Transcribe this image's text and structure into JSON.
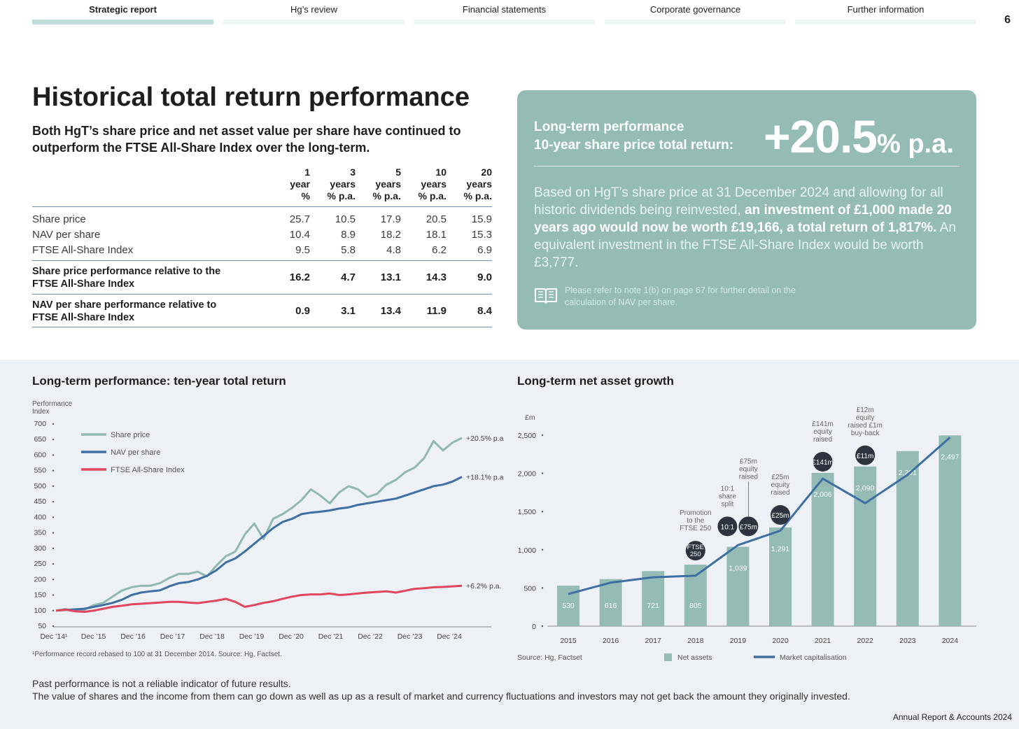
{
  "nav": {
    "tabs": [
      {
        "label": "Strategic report",
        "active": true
      },
      {
        "label": "Hg’s review",
        "active": false
      },
      {
        "label": "Financial statements",
        "active": false
      },
      {
        "label": "Corporate governance",
        "active": false
      },
      {
        "label": "Further information",
        "active": false
      }
    ],
    "page_number": "6"
  },
  "title": "Historical total return performance",
  "intro": "Both HgT’s share price and net asset value per share have continued to outperform the FTSE All-Share Index over the long-term.",
  "table": {
    "headers": [
      [
        "1",
        "year",
        "%"
      ],
      [
        "3",
        "years",
        "% p.a."
      ],
      [
        "5",
        "years",
        "% p.a."
      ],
      [
        "10",
        "years",
        "% p.a."
      ],
      [
        "20",
        "years",
        "% p.a."
      ]
    ],
    "rows": [
      {
        "label": "Share price",
        "values": [
          "25.7",
          "10.5",
          "17.9",
          "20.5",
          "15.9"
        ]
      },
      {
        "label": "NAV per share",
        "values": [
          "10.4",
          "8.9",
          "18.2",
          "18.1",
          "15.3"
        ]
      },
      {
        "label": "FTSE All-Share Index",
        "values": [
          "9.5",
          "5.8",
          "4.8",
          "6.2",
          "6.9"
        ]
      }
    ],
    "bold_rows": [
      {
        "label": "Share price performance relative to the FTSE All-Share Index",
        "values": [
          "16.2",
          "4.7",
          "13.1",
          "14.3",
          "9.0"
        ]
      },
      {
        "label": "NAV per share performance relative to FTSE All-Share Index",
        "values": [
          "0.9",
          "3.1",
          "13.4",
          "11.9",
          "8.4"
        ]
      }
    ]
  },
  "callout": {
    "heading_line1": "Long-term performance",
    "heading_line2": "10-year share price total return:",
    "big_number": "+20.5",
    "big_suffix": "% p.a.",
    "body_pre": "Based on HgT’s share price at 31 December 2024 and allowing for all historic dividends being reinvested,",
    "body_bold": "an investment of £1,000 made 20 years ago would now be worth £19,166, a total return of 1,817%.",
    "body_post": "An equivalent investment in the FTSE All-Share Index would be worth £3,777.",
    "note": "Please refer to note 1(b) on page 67 for further detail on the calculation of NAV per share.",
    "icon": "book-icon",
    "bg_color": "#94bcb5"
  },
  "line_chart": {
    "title": "Long-term performance: ten-year total return",
    "footnote": "¹Performance record rebased to 100 at 31 December 2014. Source: Hg, Factset.",
    "chart_data": {
      "type": "line",
      "ylabel": "Performance Index",
      "ylabel_lines": [
        "Performance",
        "Index"
      ],
      "ylim": [
        50,
        700
      ],
      "yticks": [
        700,
        650,
        600,
        550,
        500,
        450,
        400,
        350,
        300,
        250,
        200,
        150,
        100,
        50
      ],
      "xlabels": [
        "Dec ’14¹",
        "Dec ’15",
        "Dec ’16",
        "Dec ’17",
        "Dec ’18",
        "Dec ’19",
        "Dec ’20",
        "Dec ’21",
        "Dec ’22",
        "Dec ’23",
        "Dec ’24"
      ],
      "legend_position": "top-left",
      "series": [
        {
          "name": "Share price",
          "color": "#8fb9ae",
          "end_label": "+20.5% p.a.",
          "values": [
            100,
            105,
            98,
            103,
            118,
            125,
            145,
            165,
            175,
            180,
            180,
            188,
            205,
            218,
            218,
            225,
            210,
            245,
            275,
            290,
            345,
            380,
            330,
            395,
            410,
            430,
            455,
            490,
            470,
            445,
            480,
            500,
            490,
            465,
            475,
            505,
            520,
            545,
            560,
            590,
            645,
            615,
            640,
            655
          ]
        },
        {
          "name": "NAV per share",
          "color": "#3e6fa3",
          "end_label": "+18.1% p.a.",
          "values": [
            100,
            102,
            104,
            106,
            112,
            118,
            125,
            135,
            150,
            158,
            162,
            165,
            178,
            188,
            192,
            200,
            212,
            230,
            255,
            268,
            290,
            315,
            340,
            365,
            385,
            395,
            410,
            415,
            418,
            422,
            428,
            432,
            440,
            445,
            450,
            455,
            460,
            470,
            480,
            490,
            500,
            505,
            515,
            530
          ]
        },
        {
          "name": "FTSE All-Share Index",
          "color": "#e0475c",
          "end_label": "+6.2% p.a.",
          "values": [
            100,
            103,
            98,
            96,
            100,
            106,
            112,
            116,
            120,
            122,
            124,
            126,
            128,
            128,
            126,
            124,
            128,
            132,
            138,
            128,
            112,
            118,
            125,
            130,
            138,
            145,
            150,
            152,
            152,
            155,
            150,
            152,
            155,
            158,
            160,
            162,
            158,
            164,
            170,
            172,
            175,
            176,
            178,
            180
          ]
        }
      ]
    }
  },
  "bar_chart": {
    "title": "Long-term net asset growth",
    "source": "Source: Hg, Factset",
    "legend": {
      "bar": "Net assets",
      "line": "Market capitalisation"
    },
    "chart_data": {
      "type": "bar",
      "ylabel": "£m",
      "ylim": [
        0,
        2500
      ],
      "yticks": [
        2500,
        2000,
        1500,
        1000,
        500,
        0
      ],
      "ytick_labels": [
        "2,500",
        "2,000",
        "1,500",
        "1,000",
        "500",
        "0"
      ],
      "categories": [
        "2015",
        "2016",
        "2017",
        "2018",
        "2019",
        "2020",
        "2021",
        "2022",
        "2023",
        "2024"
      ],
      "series": [
        {
          "name": "Net assets",
          "color": "#94bcb5",
          "values": [
            530,
            616,
            721,
            805,
            1039,
            1291,
            2006,
            2090,
            2291,
            2497
          ],
          "labels": [
            "530",
            "616",
            "721",
            "805",
            "1,039",
            "1,291",
            "2,006",
            "2,090",
            "2,291",
            "2,497"
          ]
        },
        {
          "name": "Market capitalisation",
          "color": "#3e6fa3",
          "values": [
            420,
            570,
            640,
            660,
            1060,
            1250,
            1930,
            1610,
            1980,
            2470
          ]
        }
      ],
      "annotations": [
        {
          "category": "2018",
          "badge": "FTSE 250",
          "badge_lines": [
            "FTSE",
            "250"
          ],
          "text_lines": [
            "Promotion",
            "to the",
            "FTSE 250"
          ]
        },
        {
          "category": "2019",
          "badge": "10:1",
          "text_lines": [
            "10:1",
            "share",
            "split"
          ]
        },
        {
          "category": "2019",
          "badge": "£75m",
          "text_lines": [
            "£75m",
            "equity",
            "raised"
          ]
        },
        {
          "category": "2020",
          "badge": "£25m",
          "text_lines": [
            "£25m",
            "equity",
            "raised"
          ]
        },
        {
          "category": "2021",
          "badge": "£141m",
          "text_lines": [
            "£141m",
            "equity",
            "raised"
          ]
        },
        {
          "category": "2022",
          "badge": "£11m",
          "text_lines": [
            "£12m",
            "equity",
            "raised £1m",
            "buy-back"
          ]
        }
      ]
    }
  },
  "disclaimer": {
    "line1": "Past performance is not a reliable indicator of future results.",
    "line2": "The value of shares and the income from them can go down as well as up as a result of market and currency fluctuations and investors may not get back the amount they originally invested."
  },
  "footer": "Annual Report & Accounts 2024"
}
